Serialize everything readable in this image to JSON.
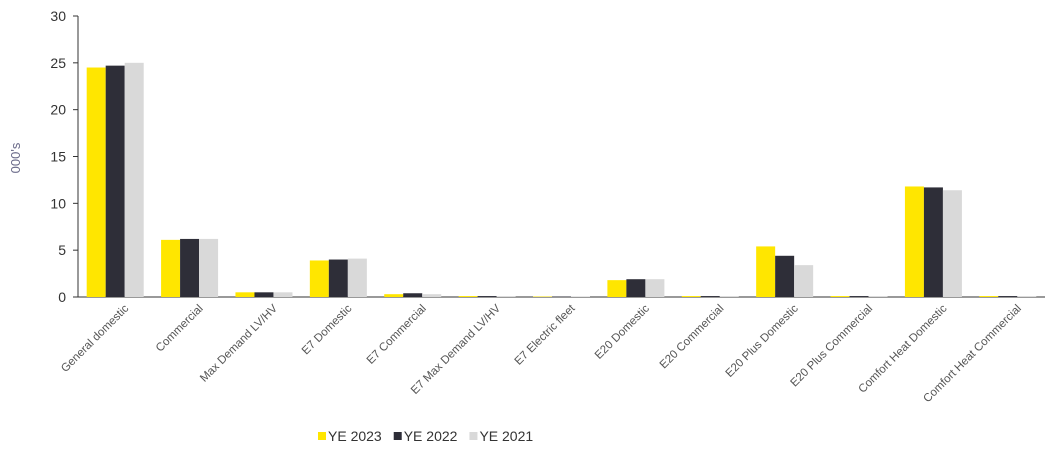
{
  "chart_data": {
    "type": "bar",
    "categories": [
      "General domestic",
      "Commercial",
      "Max Demand LV/HV",
      "E7 Domestic",
      "E7 Commercial",
      "E7 Max Demand LV/HV",
      "E7 Electric fleet",
      "E20 Domestic",
      "E20 Commercial",
      "E20 Plus Domestic",
      "E20 Plus Commercial",
      "Comfort Heat Domestic",
      "Comfort Heat Commercial"
    ],
    "series": [
      {
        "name": "YE 2023",
        "color": "#ffe600",
        "values": [
          24.5,
          6.1,
          0.5,
          3.9,
          0.3,
          0.1,
          0.05,
          1.8,
          0.1,
          5.4,
          0.1,
          11.8,
          0.1
        ]
      },
      {
        "name": "YE 2022",
        "color": "#2e2e38",
        "values": [
          24.7,
          6.2,
          0.5,
          4.0,
          0.4,
          0.1,
          0.05,
          1.9,
          0.1,
          4.4,
          0.1,
          11.7,
          0.1
        ]
      },
      {
        "name": "YE 2021",
        "color": "#d9d9d9",
        "values": [
          25.0,
          6.2,
          0.5,
          4.1,
          0.3,
          0.1,
          0.05,
          1.9,
          0.1,
          3.4,
          0.1,
          11.4,
          0.1
        ]
      }
    ],
    "y_label": "000's",
    "ylim": [
      0,
      30
    ],
    "yticks": [
      0,
      5,
      10,
      15,
      20,
      25,
      30
    ],
    "grid": false,
    "legend": "bottom"
  }
}
